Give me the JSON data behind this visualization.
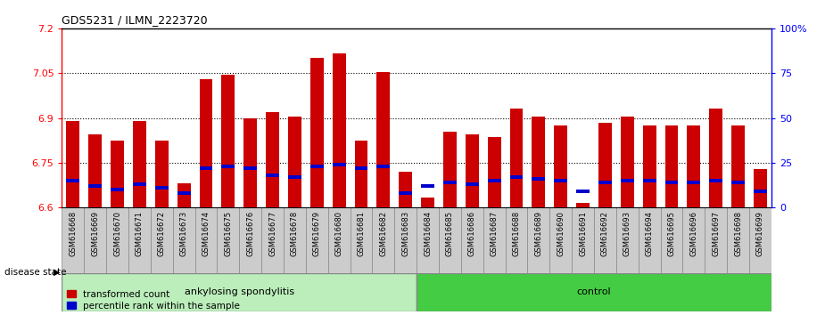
{
  "title": "GDS5231 / ILMN_2223720",
  "samples": [
    "GSM616668",
    "GSM616669",
    "GSM616670",
    "GSM616671",
    "GSM616672",
    "GSM616673",
    "GSM616674",
    "GSM616675",
    "GSM616676",
    "GSM616677",
    "GSM616678",
    "GSM616679",
    "GSM616680",
    "GSM616681",
    "GSM616682",
    "GSM616683",
    "GSM616684",
    "GSM616685",
    "GSM616686",
    "GSM616687",
    "GSM616688",
    "GSM616689",
    "GSM616690",
    "GSM616691",
    "GSM616692",
    "GSM616693",
    "GSM616694",
    "GSM616695",
    "GSM616696",
    "GSM616697",
    "GSM616698",
    "GSM616699"
  ],
  "transformed_count": [
    6.89,
    6.845,
    6.825,
    6.89,
    6.825,
    6.68,
    7.03,
    7.045,
    6.9,
    6.92,
    6.905,
    7.1,
    7.115,
    6.825,
    7.055,
    6.72,
    6.635,
    6.855,
    6.845,
    6.835,
    6.93,
    6.905,
    6.875,
    6.615,
    6.885,
    6.905,
    6.875,
    6.875,
    6.875,
    6.93,
    6.875,
    6.73
  ],
  "percentile_rank": [
    15,
    12,
    10,
    13,
    11,
    8,
    22,
    23,
    22,
    18,
    17,
    23,
    24,
    22,
    23,
    8,
    12,
    14,
    13,
    15,
    17,
    16,
    15,
    9,
    14,
    15,
    15,
    14,
    14,
    15,
    14,
    9
  ],
  "ankylosing_count": 16,
  "control_count": 16,
  "ylim_left": [
    6.6,
    7.2
  ],
  "ylim_right": [
    0,
    100
  ],
  "yticks_left": [
    6.6,
    6.75,
    6.9,
    7.05,
    7.2
  ],
  "yticks_right": [
    0,
    25,
    50,
    75,
    100
  ],
  "bar_color": "#cc0000",
  "percentile_color": "#0000cc",
  "bar_width": 0.6,
  "group1_label": "ankylosing spondylitis",
  "group1_color": "#bbeebb",
  "group2_label": "control",
  "group2_color": "#44cc44",
  "legend_items": [
    "transformed count",
    "percentile rank within the sample"
  ],
  "disease_state_label": "disease state"
}
